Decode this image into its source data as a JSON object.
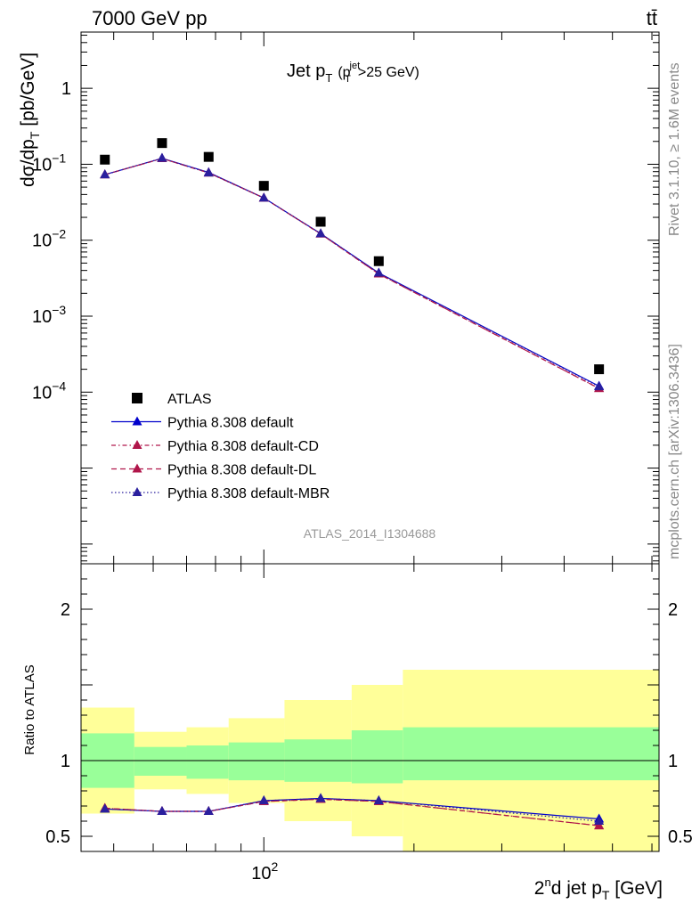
{
  "header": {
    "left": "7000 GeV pp",
    "right": "tt̄"
  },
  "side_text": {
    "rivet": "Rivet 3.1.10, ≥ 1.6M events",
    "mcplots": "mcplots.cern.ch [arXiv:1306.3436]"
  },
  "analysis_id": "ATLAS_2014_I1304688",
  "colors": {
    "data": "#000000",
    "default": "#0000cc",
    "cd": "#b0154a",
    "dl": "#b0154a",
    "mbr": "#2a1f9e",
    "band_inner": "#99ff99",
    "band_outer": "#ffff99"
  },
  "chart_data": [
    {
      "type": "scatter",
      "title": "Jet p_T (p_T^jet>25 GeV)",
      "title_parts": {
        "main": "Jet p",
        "sub": "T",
        "paren_open": "(p",
        "sup": "jet",
        "sub2": "T",
        "paren_rest": ">25 GeV)"
      },
      "ylabel": "dσ/dp_T [pb/GeV]",
      "ylabel_parts": {
        "main": "dσ/dp",
        "sub": "T",
        "rest": " [pb/GeV]"
      },
      "xscale": "log",
      "yscale": "log",
      "xlim": [
        43,
        620
      ],
      "ylim": [
        5.5e-07,
        5.5
      ],
      "yticks": [
        {
          "value": 1,
          "label": "1"
        },
        {
          "value": 0.1,
          "label": "10",
          "exp": "−1"
        },
        {
          "value": 0.01,
          "label": "10",
          "exp": "−2"
        },
        {
          "value": 0.001,
          "label": "10",
          "exp": "−3"
        },
        {
          "value": 0.0001,
          "label": "10",
          "exp": "−4"
        }
      ],
      "legend_position": "lower-left",
      "x": [
        48,
        62.5,
        77.5,
        100,
        130,
        170,
        470
      ],
      "series": [
        {
          "name": "ATLAS",
          "key": "data",
          "marker": "square",
          "line": "none",
          "values": [
            0.115,
            0.19,
            0.125,
            0.052,
            0.0175,
            0.0053,
            0.0002
          ]
        },
        {
          "name": "Pythia 8.308 default",
          "key": "default",
          "marker": "triangle",
          "line": "solid",
          "values": [
            0.073,
            0.12,
            0.078,
            0.036,
            0.0122,
            0.0037,
            0.00012
          ]
        },
        {
          "name": "Pythia 8.308 default-CD",
          "key": "cd",
          "marker": "triangle",
          "line": "dashdot",
          "values": [
            0.073,
            0.119,
            0.077,
            0.036,
            0.0121,
            0.0036,
            0.000112
          ]
        },
        {
          "name": "Pythia 8.308 default-DL",
          "key": "dl",
          "marker": "triangle",
          "line": "dashed",
          "values": [
            0.073,
            0.119,
            0.077,
            0.036,
            0.0121,
            0.0036,
            0.000112
          ]
        },
        {
          "name": "Pythia 8.308 default-MBR",
          "key": "mbr",
          "marker": "triangle",
          "line": "dotted",
          "values": [
            0.073,
            0.12,
            0.077,
            0.036,
            0.0122,
            0.0037,
            0.000118
          ]
        }
      ]
    },
    {
      "type": "line",
      "ylabel": "Ratio to ATLAS",
      "xlabel": "2^nd jet p_T [GeV]",
      "xlabel_parts": {
        "pre": "2",
        "sup": "n",
        "mid": "d jet p",
        "sub": "T",
        "rest": " [GeV]"
      },
      "xscale": "log",
      "xlim": [
        43,
        620
      ],
      "ylim": [
        0.4,
        2.3
      ],
      "yticks": [
        {
          "value": 0.5,
          "label": "0.5"
        },
        {
          "value": 1,
          "label": "1"
        },
        {
          "value": 2,
          "label": "2"
        }
      ],
      "xticks": [
        {
          "value": 100,
          "label": "10",
          "exp": "2"
        }
      ],
      "bins": [
        {
          "lo": 43,
          "hi": 55,
          "inner": [
            0.82,
            1.18
          ],
          "outer": [
            0.65,
            1.35
          ]
        },
        {
          "lo": 55,
          "hi": 70,
          "inner": [
            0.9,
            1.09
          ],
          "outer": [
            0.81,
            1.19
          ]
        },
        {
          "lo": 70,
          "hi": 85,
          "inner": [
            0.88,
            1.1
          ],
          "outer": [
            0.78,
            1.22
          ]
        },
        {
          "lo": 85,
          "hi": 110,
          "inner": [
            0.87,
            1.12
          ],
          "outer": [
            0.72,
            1.28
          ]
        },
        {
          "lo": 110,
          "hi": 150,
          "inner": [
            0.86,
            1.14
          ],
          "outer": [
            0.6,
            1.4
          ]
        },
        {
          "lo": 150,
          "hi": 190,
          "inner": [
            0.85,
            1.2
          ],
          "outer": [
            0.5,
            1.5
          ]
        },
        {
          "lo": 190,
          "hi": 620,
          "inner": [
            0.87,
            1.22
          ],
          "outer": [
            0.4,
            1.6
          ]
        }
      ],
      "x": [
        48,
        62.5,
        77.5,
        100,
        130,
        170,
        470
      ],
      "series": [
        {
          "name": "Pythia 8.308 default",
          "key": "default",
          "line": "solid",
          "values": [
            0.68,
            0.665,
            0.665,
            0.735,
            0.75,
            0.735,
            0.615
          ]
        },
        {
          "name": "Pythia 8.308 default-CD",
          "key": "cd",
          "line": "dashdot",
          "values": [
            0.685,
            0.665,
            0.665,
            0.73,
            0.745,
            0.73,
            0.57
          ]
        },
        {
          "name": "Pythia 8.308 default-DL",
          "key": "dl",
          "line": "dashed",
          "values": [
            0.685,
            0.665,
            0.665,
            0.73,
            0.745,
            0.73,
            0.57
          ]
        },
        {
          "name": "Pythia 8.308 default-MBR",
          "key": "mbr",
          "line": "dotted",
          "values": [
            0.68,
            0.665,
            0.665,
            0.735,
            0.75,
            0.735,
            0.6
          ]
        }
      ]
    }
  ]
}
